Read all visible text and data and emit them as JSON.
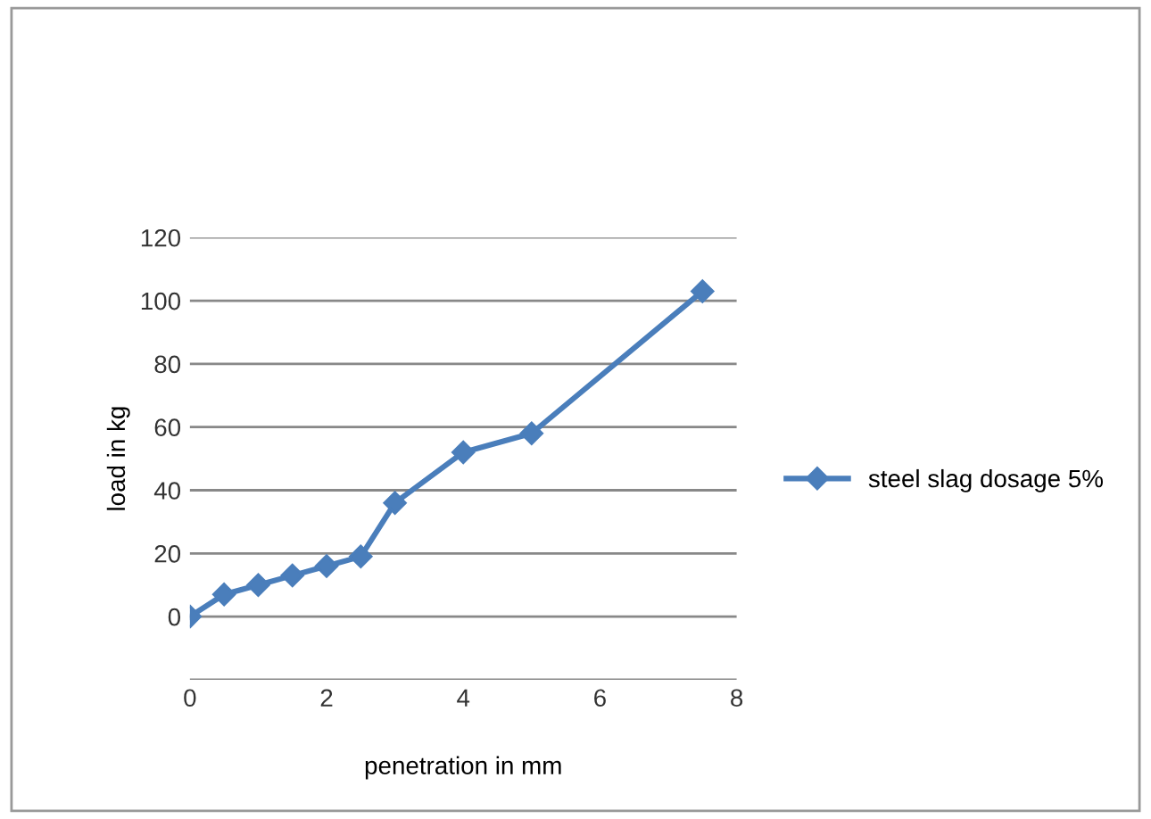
{
  "chart_data": {
    "type": "line",
    "xlabel": "penetration in mm",
    "ylabel": "load in kg",
    "x": [
      0,
      0.5,
      1,
      1.5,
      2,
      2.5,
      3,
      4,
      5,
      7.5
    ],
    "series": [
      {
        "name": "steel slag dosage 5%",
        "color": "#4a7ebb",
        "values": [
          0,
          7,
          10,
          13,
          16,
          19,
          36,
          52,
          58,
          103
        ]
      }
    ],
    "xlim": [
      0,
      8
    ],
    "xticks": [
      0,
      2,
      4,
      6,
      8
    ],
    "ylim": [
      -20,
      120
    ],
    "yticks": [
      {
        "value": -20,
        "label": null
      },
      0,
      20,
      40,
      60,
      80,
      100,
      120
    ],
    "grid": "y",
    "legend": "right",
    "marker": "diamond",
    "line_style": "solid"
  }
}
